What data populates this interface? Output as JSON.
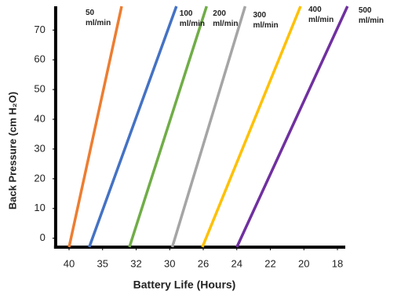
{
  "chart_data": {
    "type": "line",
    "x_label": "Battery Life (Hours)",
    "y_label": "Back Pressure (cm H₂O)",
    "xlim": [
      42,
      16
    ],
    "xticks": [
      40,
      35,
      32,
      30,
      26,
      24,
      22,
      20,
      18
    ],
    "ylim": [
      -3,
      78
    ],
    "yticks": [
      0,
      10,
      20,
      30,
      40,
      50,
      60,
      70
    ],
    "series": [
      {
        "name": "50 ml/min",
        "color": "#ED7D31",
        "x": [
          40,
          33.3
        ],
        "values": [
          -3,
          78
        ]
      },
      {
        "name": "100 ml/min",
        "color": "#4472C4",
        "x": [
          37,
          29.2
        ],
        "values": [
          -3,
          78
        ]
      },
      {
        "name": "200 ml/min",
        "color": "#70AD47",
        "x": [
          32.6,
          25.8
        ],
        "values": [
          -3,
          78
        ]
      },
      {
        "name": "300 ml/min",
        "color": "#A5A5A5",
        "x": [
          29.7,
          23.5
        ],
        "values": [
          -3,
          78
        ]
      },
      {
        "name": "400 ml/min",
        "color": "#FFC000",
        "x": [
          26.1,
          20.2
        ],
        "values": [
          -3,
          78
        ]
      },
      {
        "name": "500 ml/min",
        "color": "#7030A0",
        "x": [
          24,
          17.4
        ],
        "values": [
          -3,
          78
        ]
      }
    ]
  }
}
